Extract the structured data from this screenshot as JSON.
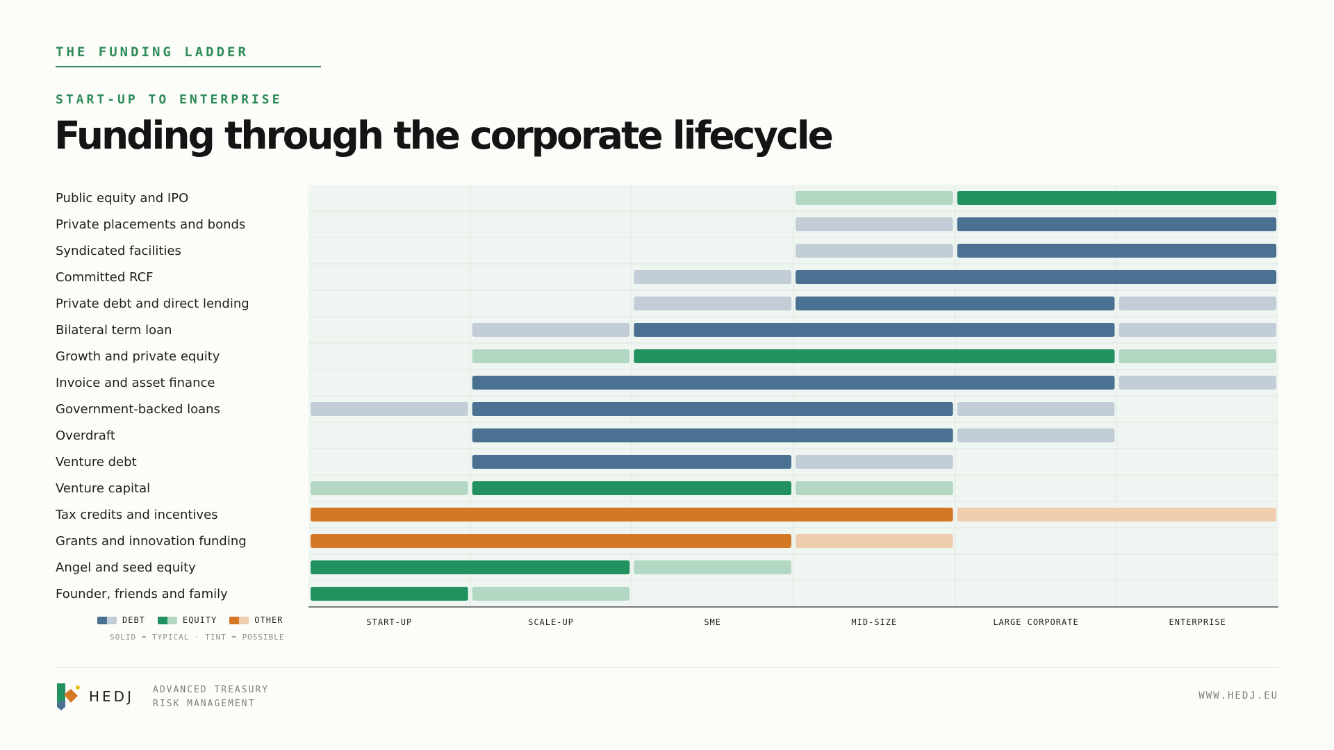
{
  "header": {
    "eyebrow": "THE FUNDING LADDER",
    "subtitle": "START-UP TO ENTERPRISE",
    "title": "Funding through the corporate lifecycle"
  },
  "colors": {
    "debt": "#4a7191",
    "debt_tint": "#c2cdd7",
    "equity": "#229160",
    "equity_tint": "#b2d8c4",
    "other": "#d57826",
    "other_tint": "#efcdaf",
    "panel": "#eff5f0",
    "grid": "#dfe6df"
  },
  "chart_data": {
    "type": "range-bar",
    "categories": [
      "START-UP",
      "SCALE-UP",
      "SME",
      "MID-SIZE",
      "LARGE CORPORATE",
      "ENTERPRISE"
    ],
    "rows": [
      {
        "label": "Public equity and IPO",
        "kind": "equity",
        "segments": [
          {
            "from": 3,
            "to": 4,
            "level": "possible"
          },
          {
            "from": 4,
            "to": 6,
            "level": "typical"
          }
        ]
      },
      {
        "label": "Private placements and bonds",
        "kind": "debt",
        "segments": [
          {
            "from": 3,
            "to": 4,
            "level": "possible"
          },
          {
            "from": 4,
            "to": 6,
            "level": "typical"
          }
        ]
      },
      {
        "label": "Syndicated facilities",
        "kind": "debt",
        "segments": [
          {
            "from": 3,
            "to": 4,
            "level": "possible"
          },
          {
            "from": 4,
            "to": 6,
            "level": "typical"
          }
        ]
      },
      {
        "label": "Committed RCF",
        "kind": "debt",
        "segments": [
          {
            "from": 2,
            "to": 3,
            "level": "possible"
          },
          {
            "from": 3,
            "to": 6,
            "level": "typical"
          }
        ]
      },
      {
        "label": "Private debt and direct lending",
        "kind": "debt",
        "segments": [
          {
            "from": 2,
            "to": 3,
            "level": "possible"
          },
          {
            "from": 3,
            "to": 5,
            "level": "typical"
          },
          {
            "from": 5,
            "to": 6,
            "level": "possible"
          }
        ]
      },
      {
        "label": "Bilateral term loan",
        "kind": "debt",
        "segments": [
          {
            "from": 1,
            "to": 2,
            "level": "possible"
          },
          {
            "from": 2,
            "to": 5,
            "level": "typical"
          },
          {
            "from": 5,
            "to": 6,
            "level": "possible"
          }
        ]
      },
      {
        "label": "Growth and private equity",
        "kind": "equity",
        "segments": [
          {
            "from": 1,
            "to": 2,
            "level": "possible"
          },
          {
            "from": 2,
            "to": 5,
            "level": "typical"
          },
          {
            "from": 5,
            "to": 6,
            "level": "possible"
          }
        ]
      },
      {
        "label": "Invoice and asset finance",
        "kind": "debt",
        "segments": [
          {
            "from": 1,
            "to": 5,
            "level": "typical"
          },
          {
            "from": 5,
            "to": 6,
            "level": "possible"
          }
        ]
      },
      {
        "label": "Government-backed loans",
        "kind": "debt",
        "segments": [
          {
            "from": 0,
            "to": 1,
            "level": "possible"
          },
          {
            "from": 1,
            "to": 4,
            "level": "typical"
          },
          {
            "from": 4,
            "to": 5,
            "level": "possible"
          }
        ]
      },
      {
        "label": "Overdraft",
        "kind": "debt",
        "segments": [
          {
            "from": 1,
            "to": 4,
            "level": "typical"
          },
          {
            "from": 4,
            "to": 5,
            "level": "possible"
          }
        ]
      },
      {
        "label": "Venture debt",
        "kind": "debt",
        "segments": [
          {
            "from": 1,
            "to": 3,
            "level": "typical"
          },
          {
            "from": 3,
            "to": 4,
            "level": "possible"
          }
        ]
      },
      {
        "label": "Venture capital",
        "kind": "equity",
        "segments": [
          {
            "from": 0,
            "to": 1,
            "level": "possible"
          },
          {
            "from": 1,
            "to": 3,
            "level": "typical"
          },
          {
            "from": 3,
            "to": 4,
            "level": "possible"
          }
        ]
      },
      {
        "label": "Tax credits and incentives",
        "kind": "other",
        "segments": [
          {
            "from": 0,
            "to": 4,
            "level": "typical"
          },
          {
            "from": 4,
            "to": 6,
            "level": "possible"
          }
        ]
      },
      {
        "label": "Grants and innovation funding",
        "kind": "other",
        "segments": [
          {
            "from": 0,
            "to": 3,
            "level": "typical"
          },
          {
            "from": 3,
            "to": 4,
            "level": "possible"
          }
        ]
      },
      {
        "label": "Angel and seed equity",
        "kind": "equity",
        "segments": [
          {
            "from": 0,
            "to": 2,
            "level": "typical"
          },
          {
            "from": 2,
            "to": 3,
            "level": "possible"
          }
        ]
      },
      {
        "label": "Founder, friends and family",
        "kind": "equity",
        "segments": [
          {
            "from": 0,
            "to": 1,
            "level": "typical"
          },
          {
            "from": 1,
            "to": 2,
            "level": "possible"
          }
        ]
      }
    ]
  },
  "legend": {
    "debt_label": "DEBT",
    "equity_label": "EQUITY",
    "other_label": "OTHER",
    "note": "SOLID = TYPICAL · TINT = POSSIBLE"
  },
  "footer": {
    "brand": "HEDJ",
    "tagline_line1": "ADVANCED TREASURY",
    "tagline_line2": "RISK MANAGEMENT",
    "url": "WWW.HEDJ.EU"
  }
}
